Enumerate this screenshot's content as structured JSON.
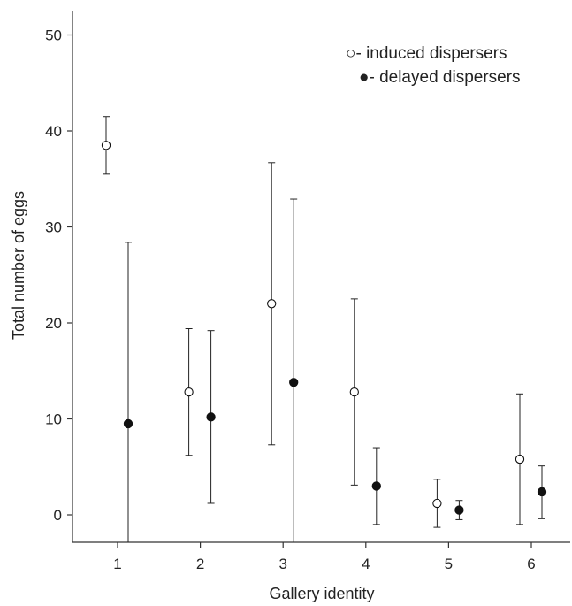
{
  "chart_data": {
    "type": "scatter",
    "title": "",
    "xlabel": "Gallery identity",
    "ylabel": "Total number of eggs",
    "x_ticks": [
      "1",
      "2",
      "3",
      "4",
      "5",
      "6"
    ],
    "y_ticks": [
      "0",
      "10",
      "20",
      "30",
      "40",
      "50"
    ],
    "xlim": [
      0.5,
      6.5
    ],
    "ylim": [
      -3,
      53
    ],
    "grid": false,
    "legend_position": "top-right",
    "series": [
      {
        "name": "induced dispersers",
        "legend_label": "○- induced dispersers",
        "marker": "open-circle",
        "points": [
          {
            "x": 1,
            "y": 38.5,
            "low": 35.5,
            "high": 41.5
          },
          {
            "x": 2,
            "y": 12.8,
            "low": 6.2,
            "high": 19.4
          },
          {
            "x": 3,
            "y": 22.0,
            "low": 7.3,
            "high": 36.7
          },
          {
            "x": 4,
            "y": 12.8,
            "low": 3.1,
            "high": 22.5
          },
          {
            "x": 5,
            "y": 1.2,
            "low": -1.3,
            "high": 3.7
          },
          {
            "x": 6,
            "y": 5.8,
            "low": -1.0,
            "high": 12.6
          }
        ]
      },
      {
        "name": "delayed dispersers",
        "legend_label": "●- delayed dispersers",
        "marker": "filled-circle",
        "points": [
          {
            "x": 1,
            "y": 9.5,
            "low": -3.0,
            "high": 28.4
          },
          {
            "x": 2,
            "y": 10.2,
            "low": 1.2,
            "high": 19.2
          },
          {
            "x": 3,
            "y": 13.8,
            "low": -3.0,
            "high": 32.9
          },
          {
            "x": 4,
            "y": 3.0,
            "low": -1.0,
            "high": 7.0
          },
          {
            "x": 5,
            "y": 0.5,
            "low": -0.5,
            "high": 1.5
          },
          {
            "x": 6,
            "y": 2.4,
            "low": -0.4,
            "high": 5.1
          }
        ]
      }
    ]
  }
}
